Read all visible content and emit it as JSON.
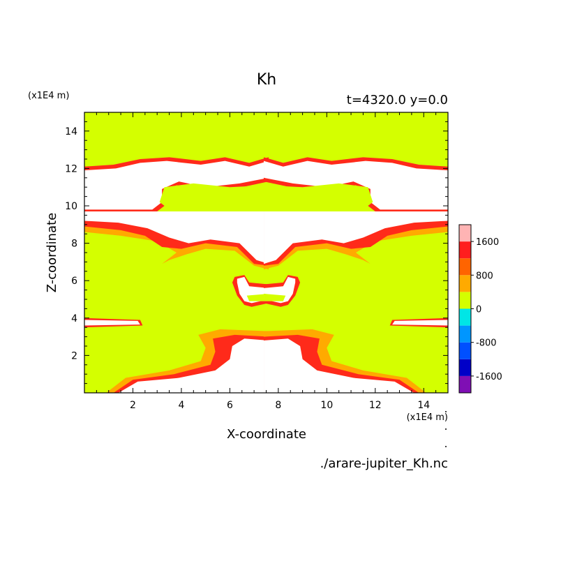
{
  "chart_data": {
    "type": "heatmap",
    "title": "Kh",
    "subtitle": "t=4320.0 y=0.0",
    "xlabel": "X-coordinate",
    "ylabel": "Z-coordinate",
    "x_unit": "(x1E4 m)",
    "y_unit": "(x1E4 m)",
    "source_file": "./arare-jupiter_Kh.nc",
    "xlim": [
      0,
      15
    ],
    "ylim": [
      0,
      15
    ],
    "x_ticks": [
      2,
      4,
      6,
      8,
      10,
      12,
      14
    ],
    "y_ticks": [
      2,
      4,
      6,
      8,
      10,
      12,
      14
    ],
    "colorbar": {
      "labels": [
        1600,
        800,
        0,
        -800,
        -1600
      ],
      "levels": [
        {
          "min": -2000,
          "max": -1600,
          "color": "#7f0fb4"
        },
        {
          "min": -1600,
          "max": -1200,
          "color": "#0000c8"
        },
        {
          "min": -1200,
          "max": -800,
          "color": "#0050ff"
        },
        {
          "min": -800,
          "max": -400,
          "color": "#0096ff"
        },
        {
          "min": -400,
          "max": 0,
          "color": "#00e6e6"
        },
        {
          "min": 0,
          "max": 400,
          "color": "#d4ff00"
        },
        {
          "min": 400,
          "max": 800,
          "color": "#ffaa00"
        },
        {
          "min": 800,
          "max": 1200,
          "color": "#ff6400"
        },
        {
          "min": 1200,
          "max": 1600,
          "color": "#ff1e1e"
        },
        {
          "min": 1600,
          "max": 2000,
          "color": "#ffb4b4"
        }
      ]
    },
    "colors": {
      "background_level": "#d4ff00",
      "high_level": "#ffffff",
      "orange": "#ffaa00",
      "red": "#ff2a1a",
      "pink": "#ffb4b4"
    }
  }
}
